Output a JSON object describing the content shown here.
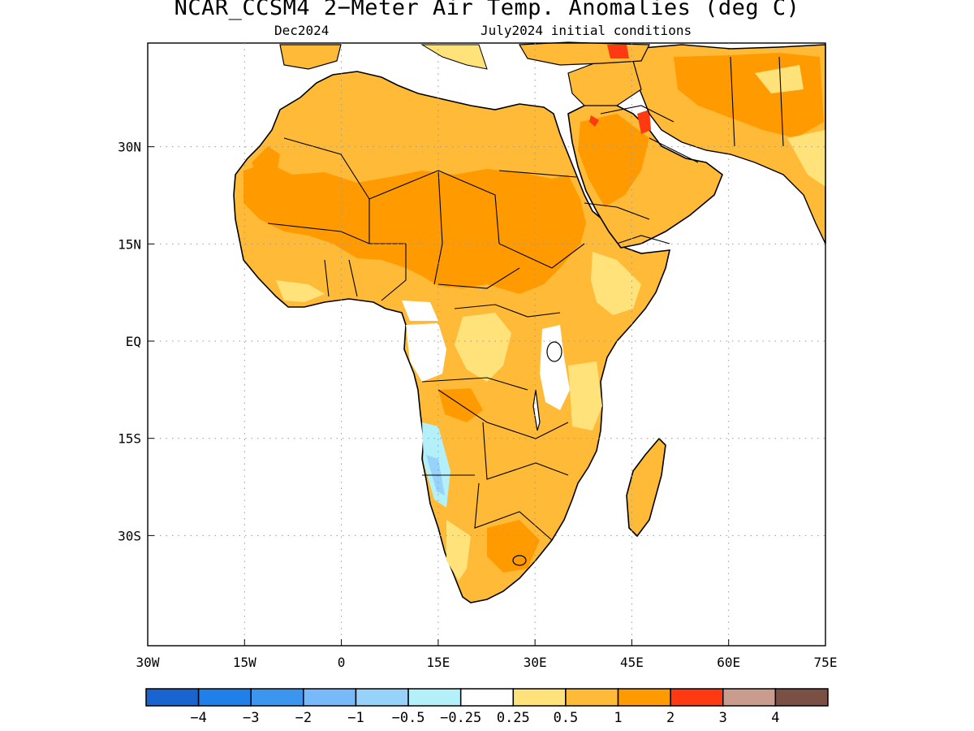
{
  "title": "NCAR_CCSM4 2−Meter Air Temp. Anomalies (deg C)",
  "subtitle_left": "Dec2024",
  "subtitle_right": "July2024 initial conditions",
  "map": {
    "projection": "lat-lon",
    "lon_range": [
      -30,
      75
    ],
    "lat_range": [
      -47,
      46
    ],
    "lon_ticks": [
      "30W",
      "15W",
      "0",
      "15E",
      "30E",
      "45E",
      "60E",
      "75E"
    ],
    "lat_ticks": [
      "30N",
      "15N",
      "EQ",
      "15S",
      "30S"
    ],
    "grid": "dotted"
  },
  "colors": {
    "very_warm": "#ff3a12",
    "warm_1_2": "#ff9b00",
    "warm_05_1": "#ffba38",
    "warm_025_05": "#ffe27a",
    "cool_025_05": "#b4f0fa",
    "cool_05_1": "#96d2fa",
    "land_outline": "#000000"
  },
  "colorbar": {
    "colors": [
      "#1a64d2",
      "#2080ea",
      "#3c96f0",
      "#78b9fa",
      "#96d2fa",
      "#b4f0fa",
      "#ffffff",
      "#ffe27a",
      "#ffba38",
      "#ff9b00",
      "#ff3a12",
      "#c99c8e",
      "#7b5044"
    ],
    "labels": [
      "−4",
      "−3",
      "−2",
      "−1",
      "−0.5",
      "−0.25",
      "0.25",
      "0.5",
      "1",
      "2",
      "3",
      "4"
    ]
  }
}
